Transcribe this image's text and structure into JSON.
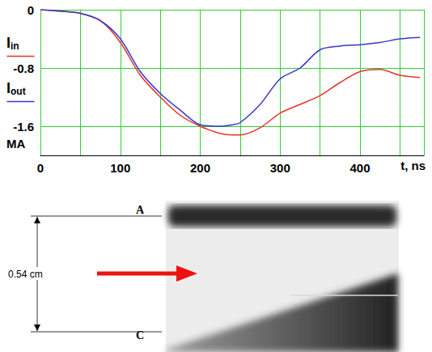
{
  "chart_data": {
    "type": "line",
    "x_label": "t, ns",
    "y_label": "MA",
    "x": [
      0,
      25,
      50,
      75,
      100,
      125,
      150,
      175,
      200,
      225,
      240,
      250,
      275,
      300,
      325,
      350,
      375,
      400,
      425,
      450,
      475
    ],
    "series": [
      {
        "name": "Iin",
        "color": "#e8322b",
        "values": [
          0,
          -0.02,
          -0.05,
          -0.15,
          -0.45,
          -0.9,
          -1.2,
          -1.45,
          -1.6,
          -1.7,
          -1.72,
          -1.72,
          -1.62,
          -1.42,
          -1.3,
          -1.18,
          -1.0,
          -0.85,
          -0.82,
          -0.9,
          -0.93
        ]
      },
      {
        "name": "Iout",
        "color": "#3838c8",
        "values": [
          0,
          -0.02,
          -0.05,
          -0.15,
          -0.4,
          -0.85,
          -1.15,
          -1.38,
          -1.58,
          -1.6,
          -1.58,
          -1.55,
          -1.3,
          -0.95,
          -0.8,
          -0.55,
          -0.5,
          -0.48,
          -0.45,
          -0.4,
          -0.38
        ]
      }
    ],
    "xlim": [
      0,
      480
    ],
    "xticks": [
      0,
      100,
      200,
      300,
      400
    ],
    "ylim": [
      -2.0,
      0
    ],
    "yticks": [
      0,
      -0.8,
      -1.6
    ],
    "grid": true
  },
  "streak_image": {
    "top_label": "A",
    "bottom_label": "C",
    "dimension_label": "0.54 cm"
  }
}
